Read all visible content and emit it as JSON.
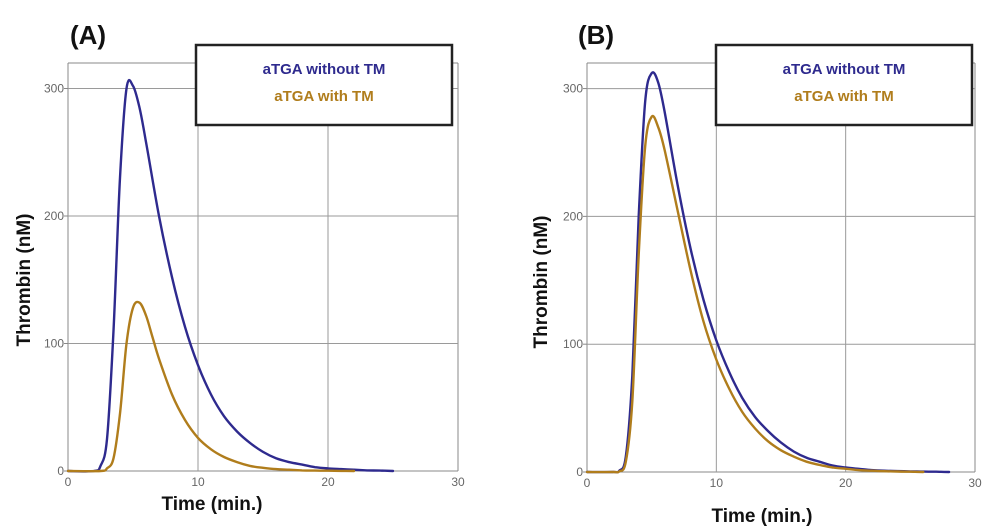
{
  "colors": {
    "without_tm": "#2e2a8e",
    "with_tm": "#b07d1c"
  },
  "chart_data": [
    {
      "type": "line",
      "panel_label": "(A)",
      "xlabel": "Time (min.)",
      "ylabel": "Thrombin (nM)",
      "xlim": [
        0,
        30
      ],
      "ylim": [
        0,
        320
      ],
      "x_ticks": [
        "0",
        "10",
        "20",
        "30"
      ],
      "y_ticks": [
        "0",
        "100",
        "200",
        "300"
      ],
      "grid": true,
      "legend_position": "top-right",
      "series": [
        {
          "name": "aTGA without TM",
          "color": "#2e2a8e",
          "x": [
            0,
            2,
            2.5,
            3,
            3.5,
            4,
            4.5,
            5,
            5.5,
            6,
            7,
            8,
            9,
            10,
            11,
            12,
            13,
            14,
            15,
            16,
            17,
            18,
            19,
            20,
            21,
            22,
            23,
            24,
            25
          ],
          "y": [
            0,
            0,
            4,
            25,
            110,
            230,
            300,
            302,
            285,
            258,
            200,
            152,
            113,
            83,
            60,
            43,
            31,
            22,
            15,
            10,
            7,
            5,
            3,
            2,
            1.5,
            1,
            0.5,
            0.3,
            0
          ]
        },
        {
          "name": "aTGA with TM",
          "color": "#b07d1c",
          "x": [
            0,
            2.5,
            3,
            3.5,
            4,
            4.5,
            5,
            5.5,
            6,
            6.5,
            7,
            8,
            9,
            10,
            11,
            12,
            13,
            14,
            15,
            16,
            17,
            18,
            19,
            20,
            21,
            22
          ],
          "y": [
            0,
            0,
            2,
            10,
            45,
            100,
            128,
            132,
            122,
            105,
            88,
            60,
            40,
            26,
            17,
            11,
            7,
            4,
            2.5,
            1.5,
            1,
            0.5,
            0.3,
            0.2,
            0.1,
            0
          ]
        }
      ]
    },
    {
      "type": "line",
      "panel_label": "(B)",
      "xlabel": "Time (min.)",
      "ylabel": "Thrombin (nM)",
      "xlim": [
        0,
        30
      ],
      "ylim": [
        0,
        320
      ],
      "x_ticks": [
        "0",
        "10",
        "20",
        "30"
      ],
      "y_ticks": [
        "0",
        "100",
        "200",
        "300"
      ],
      "grid": true,
      "legend_position": "top-right",
      "series": [
        {
          "name": "aTGA without TM",
          "color": "#2e2a8e",
          "x": [
            0,
            2,
            2.5,
            3,
            3.5,
            4,
            4.5,
            5,
            5.5,
            6,
            7,
            8,
            9,
            10,
            11,
            12,
            13,
            14,
            15,
            16,
            17,
            18,
            19,
            20,
            21,
            22,
            23,
            24,
            25,
            26,
            27,
            28
          ],
          "y": [
            0,
            0,
            1,
            12,
            75,
            200,
            290,
            312,
            305,
            282,
            225,
            175,
            135,
            103,
            78,
            58,
            43,
            32,
            23,
            16,
            11,
            8,
            5,
            3.5,
            2.5,
            1.5,
            1,
            0.7,
            0.5,
            0.3,
            0.2,
            0
          ]
        },
        {
          "name": "aTGA with TM",
          "color": "#b07d1c",
          "x": [
            0,
            2,
            2.5,
            3,
            3.5,
            4,
            4.5,
            5,
            5.5,
            6,
            7,
            8,
            9,
            10,
            11,
            12,
            13,
            14,
            15,
            16,
            17,
            18,
            19,
            20,
            21,
            22,
            23,
            24,
            25,
            26
          ],
          "y": [
            0,
            0,
            0.5,
            8,
            55,
            170,
            255,
            278,
            270,
            252,
            205,
            158,
            118,
            88,
            65,
            47,
            34,
            24,
            17,
            12,
            8,
            5.5,
            3.5,
            2.5,
            1.5,
            1,
            0.6,
            0.4,
            0.2,
            0
          ]
        }
      ]
    }
  ]
}
